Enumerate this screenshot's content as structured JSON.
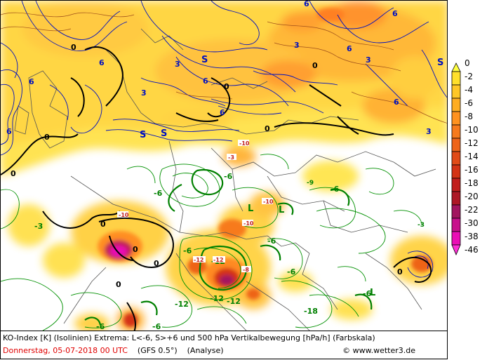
{
  "caption": {
    "line1": "KO-Index [K] (Isolinien) Extrema: L<-6, S>+6 und 500 hPa Vertikalbewegung [hPa/h] (Farbskala)",
    "date": "Donnerstag, 05-07-2018  00 UTC",
    "model": "(GFS 0.5°)",
    "analysis": "(Analyse)",
    "copyright": "© www.wetter3.de"
  },
  "legend": {
    "values": [
      "0",
      "-2",
      "-4",
      "-6",
      "-8",
      "-10",
      "-12",
      "-14",
      "-16",
      "-18",
      "-20",
      "-22",
      "-30",
      "-38",
      "-46"
    ],
    "colors": [
      "#ffff40",
      "#ffe02a",
      "#ffc726",
      "#ffad22",
      "#ff921f",
      "#f77a1c",
      "#ee6419",
      "#e14b17",
      "#d43315",
      "#c11e1c",
      "#ad1826",
      "#a21660",
      "#c8118c",
      "#ea0fb5",
      "#ff2fd6"
    ]
  },
  "colors": {
    "ko_positive": "#0010c0",
    "ko_negative": "#009000",
    "ko_zero": "#000000",
    "borders": "#555555",
    "caption_date": "#e00000"
  },
  "map_labels": {
    "blue": [
      "6",
      "6",
      "6",
      "6",
      "3",
      "3",
      "3",
      "6",
      "6",
      "3",
      "S",
      "S",
      "S",
      "6",
      "6",
      "S",
      "3",
      "6"
    ],
    "green": [
      "-6",
      "-6",
      "-6",
      "-3",
      "-12",
      "-12",
      "-6",
      "-8",
      "-6",
      "-6",
      "-12",
      "-12",
      "-6",
      "-18",
      "-6",
      "-9",
      "-3",
      "-6"
    ],
    "zero": [
      "0",
      "0",
      "0",
      "0",
      "0",
      "0",
      "0",
      "0",
      "0",
      "0",
      "0"
    ],
    "lows": [
      "L",
      "L",
      "L"
    ],
    "extrema_boxes": [
      "-10",
      "-3",
      "-10",
      "-10",
      "-12",
      "-8",
      "-12",
      "-10"
    ]
  }
}
